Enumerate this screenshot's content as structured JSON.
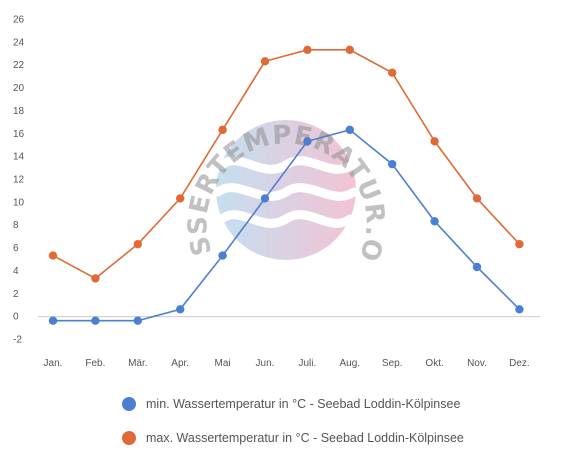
{
  "chart_data": {
    "type": "line",
    "categories": [
      "Jan.",
      "Feb.",
      "Mär.",
      "Apr.",
      "Mai",
      "Jun.",
      "Juli.",
      "Aug.",
      "Sep.",
      "Okt.",
      "Nov.",
      "Dez."
    ],
    "series": [
      {
        "name": "min. Wassertemperatur in °C - Seebad Loddin-Kölpinsee",
        "color": "#4a7fd1",
        "values": [
          -0.4,
          -0.4,
          -0.4,
          0.6,
          5.3,
          10.3,
          15.3,
          16.3,
          13.3,
          8.3,
          4.3,
          0.6
        ]
      },
      {
        "name": "max. Wassertemperatur in °C - Seebad Loddin-Kölpinsee",
        "color": "#e06a37",
        "values": [
          5.3,
          3.3,
          6.3,
          10.3,
          16.3,
          22.3,
          23.3,
          23.3,
          21.3,
          15.3,
          10.3,
          6.3
        ]
      }
    ],
    "y_ticks": [
      "26",
      "24",
      "22",
      "20",
      "18",
      "16",
      "14",
      "12",
      "10",
      "8",
      "6",
      "4",
      "2",
      "0",
      "-2"
    ],
    "ylim": [
      -2,
      26
    ],
    "grid": false,
    "legend_position": "bottom"
  },
  "watermark": {
    "text": "WASSERTEMPERATUR.ORG",
    "colors": [
      "#b9d9ee",
      "#f0b8cc"
    ]
  }
}
